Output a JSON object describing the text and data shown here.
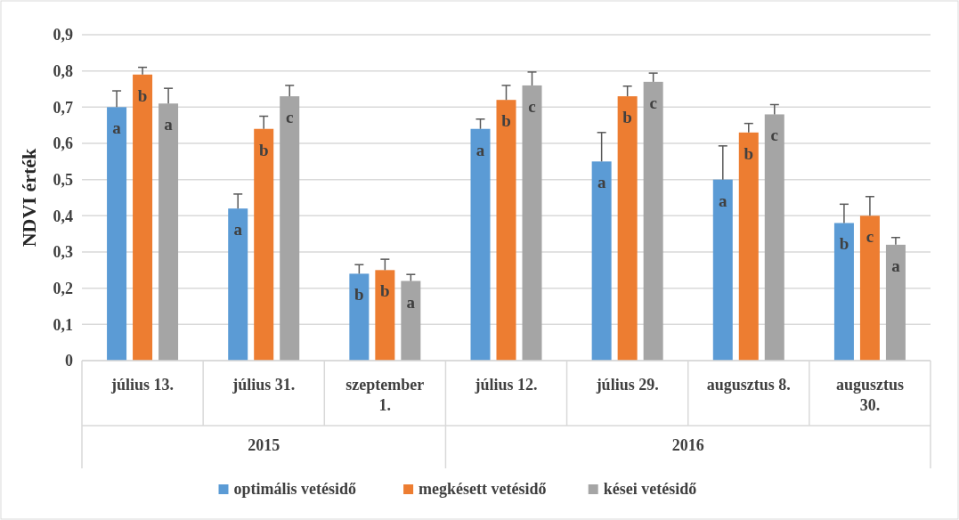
{
  "chart_data": {
    "type": "bar",
    "ylabel": "NDVI érték",
    "categories": [
      "július 13.",
      "július 31.",
      "szeptember 1.",
      "július 12.",
      "július 29.",
      "augusztus 8.",
      "augusztus 30."
    ],
    "annotations": [
      "2015",
      "2016"
    ],
    "series": [
      {
        "name": "optimális vetésidő",
        "color": "#5b9bd5",
        "values": [
          0.7,
          0.42,
          0.24,
          0.64,
          0.55,
          0.5,
          0.38
        ],
        "errors": [
          [
            0.7,
            0.745
          ],
          [
            0.42,
            0.46
          ],
          [
            0.24,
            0.265
          ],
          [
            0.64,
            0.667
          ],
          [
            0.55,
            0.63
          ],
          [
            0.5,
            0.593
          ],
          [
            0.38,
            0.432
          ]
        ],
        "value_labels": [
          "a",
          "a",
          "b",
          "a",
          "a",
          "a",
          "b"
        ]
      },
      {
        "name": "megkésett vetésidő",
        "color": "#ed7d31",
        "values": [
          0.79,
          0.64,
          0.25,
          0.72,
          0.73,
          0.63,
          0.4
        ],
        "errors": [
          [
            0.79,
            0.81
          ],
          [
            0.64,
            0.675
          ],
          [
            0.25,
            0.28
          ],
          [
            0.72,
            0.76
          ],
          [
            0.73,
            0.758
          ],
          [
            0.63,
            0.655
          ],
          [
            0.4,
            0.453
          ]
        ],
        "value_labels": [
          "b",
          "b",
          "b",
          "b",
          "b",
          "b",
          "c"
        ]
      },
      {
        "name": "kései vetésidő",
        "color": "#a5a5a5",
        "values": [
          0.71,
          0.73,
          0.22,
          0.76,
          0.77,
          0.68,
          0.32
        ],
        "errors": [
          [
            0.71,
            0.752
          ],
          [
            0.73,
            0.76
          ],
          [
            0.22,
            0.238
          ],
          [
            0.76,
            0.797
          ],
          [
            0.77,
            0.794
          ],
          [
            0.68,
            0.707
          ],
          [
            0.32,
            0.34
          ]
        ],
        "value_labels": [
          "a",
          "c",
          "a",
          "c",
          "c",
          "c",
          "a"
        ]
      }
    ],
    "ylim": [
      0,
      0.9
    ],
    "yticks": [
      0,
      {
        "value": 0.1,
        "label": "0,1"
      },
      {
        "value": 0.2,
        "label": "0,2"
      },
      {
        "value": 0.3,
        "label": "0,3"
      },
      {
        "value": 0.4,
        "label": "0,4"
      },
      {
        "value": 0.5,
        "label": "0,5"
      },
      {
        "value": 0.6,
        "label": "0,6"
      },
      {
        "value": 0.7,
        "label": "0,7"
      },
      {
        "value": 0.8,
        "label": "0,8"
      },
      {
        "value": 0.9,
        "label": "0,9"
      }
    ],
    "grid": "y",
    "legend": "bottom"
  }
}
